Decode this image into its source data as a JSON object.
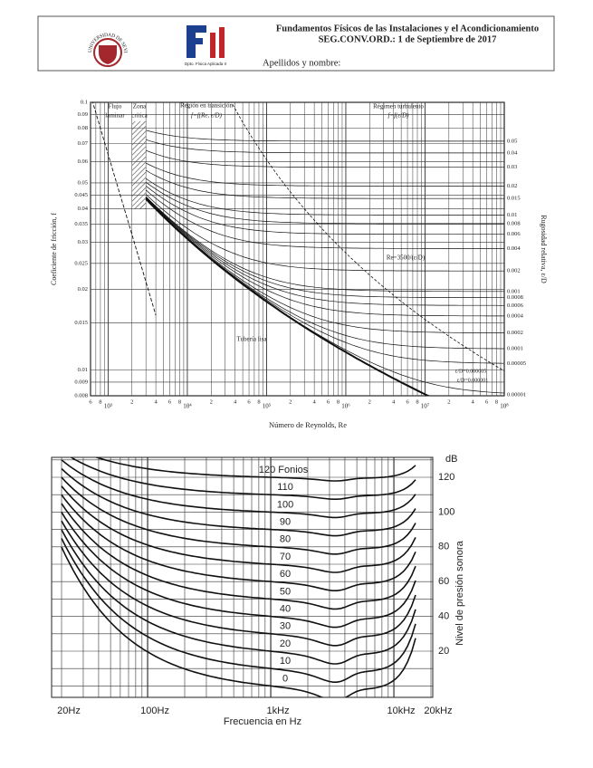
{
  "header": {
    "university": "UNIVERSIDAD DE SEVILLA",
    "department": "Dpto. Física Aplicada II",
    "title": "Fundamentos Físicos de las Instalaciones y el Acondicionamiento",
    "subtitle": "SEG.CONV.ORD.: 1 de Septiembre de 2017",
    "name_field": "Apellidos y nombre:"
  },
  "moody": {
    "y_label": "Coeficiente de fricción, f",
    "y2_label": "Rugosidad relativa, ε/D",
    "x_label": "Número de Reynolds, Re",
    "yticks": [
      "0.1",
      "0.09",
      "0.08",
      "0.07",
      "0.06",
      "0.05",
      "0.045",
      "0.04",
      "0.035",
      "0.03",
      "0.025",
      "0.02",
      "0.015",
      "0.01",
      "0.009",
      "0.008"
    ],
    "roughness": [
      "0.05",
      "0.04",
      "0.03",
      "0.02",
      "0.015",
      "0.01",
      "0.008",
      "0.006",
      "0.004",
      "0.002",
      "0.001",
      "0.0008",
      "0.0006",
      "0.0004",
      "0.0002",
      "0.0001",
      "0.00005",
      "0.00001"
    ],
    "x_start": [
      "6",
      "8"
    ],
    "x_decades": [
      {
        "value": 1000,
        "label": "10³"
      },
      {
        "value": 10000,
        "label": "10⁴"
      },
      {
        "value": 100000,
        "label": "10⁵"
      },
      {
        "value": 1000000,
        "label": "10⁶"
      },
      {
        "value": 10000000,
        "label": "10⁷"
      },
      {
        "value": 100000000,
        "label": "10⁸"
      }
    ],
    "x_minor": [
      "2",
      "4",
      "6",
      "8"
    ],
    "annotations": {
      "laminar_1": "Flujo",
      "laminar_2": "laminar",
      "critical_1": "Zona",
      "critical_2": "crítica",
      "transition_1": "Región en transición",
      "transition_2": "f=f(Re, ε/D)",
      "turbulent_1": "Régimen turbulento",
      "turbulent_2": "f=f(ε/D)",
      "boundary": "Re=3500/(ε/D)",
      "smooth": "Tubería lisa",
      "small_1": "ε/D=0.000005",
      "small_2": "ε/D=0.000001"
    }
  },
  "loudness": {
    "unit": "dB",
    "y_label": "Nivel de presión sonora",
    "x_label": "Frecuencia en Hz",
    "yticks": [
      "120",
      "100",
      "80",
      "60",
      "40",
      "20"
    ],
    "xticks": [
      "20Hz",
      "100Hz",
      "1kHz",
      "10kHz",
      "20kHz"
    ],
    "curves": [
      "120 Fonios",
      "110",
      "100",
      "90",
      "80",
      "70",
      "60",
      "50",
      "40",
      "30",
      "20",
      "10",
      "0"
    ]
  }
}
